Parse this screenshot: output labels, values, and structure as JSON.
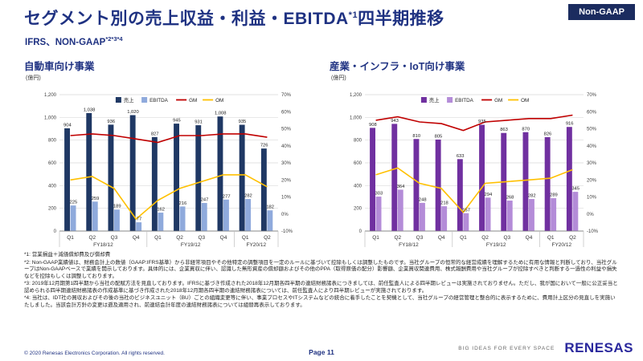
{
  "header": {
    "badge": "Non-GAAP",
    "title_main": "セグメント別の売上収益・利益・EBITDA",
    "title_sup": "*1",
    "title_tail": "四半期推移",
    "subtitle_main": "IFRS、NON-GAAP",
    "subtitle_sup": "*2*3*4"
  },
  "colors": {
    "brand_blue": "#1F3282",
    "badge_bg": "#1B2C5F",
    "logo_blue": "#2A289D",
    "gm_red": "#C00000",
    "om_yellow": "#FFC000",
    "auto_revenue": "#1F3864",
    "auto_ebitda": "#8FAADC",
    "iot_revenue": "#7030A0",
    "iot_ebitda": "#B48CD8"
  },
  "chart_data": [
    {
      "type": "bar",
      "title": "自動車向け事業",
      "unit_label": "(億円)",
      "categories": [
        "Q1",
        "Q2",
        "Q3",
        "Q4",
        "Q1",
        "Q2",
        "Q3",
        "Q4",
        "Q1",
        "Q2"
      ],
      "category_groups": [
        {
          "label": "FY18/12",
          "span": 4
        },
        {
          "label": "FY19/12",
          "span": 4
        },
        {
          "label": "FY20/12",
          "span": 2
        }
      ],
      "series": [
        {
          "name": "売上",
          "type": "bar",
          "axis": "left",
          "color": "#1F3864",
          "values": [
            904,
            1038,
            936,
            1020,
            827,
            945,
            931,
            1008,
            935,
            726
          ]
        },
        {
          "name": "EBITDA",
          "type": "bar",
          "axis": "left",
          "color": "#8FAADC",
          "values": [
            225,
            259,
            189,
            77,
            162,
            216,
            247,
            277,
            282,
            182
          ]
        },
        {
          "name": "GM",
          "type": "line",
          "axis": "right",
          "color": "#C00000",
          "values": [
            46,
            47,
            46,
            44,
            42,
            46,
            46,
            47,
            47,
            45
          ]
        },
        {
          "name": "OM",
          "type": "line",
          "axis": "right",
          "color": "#FFC000",
          "values": [
            20,
            22,
            15,
            -3,
            8,
            15,
            19,
            23,
            23,
            16
          ]
        }
      ],
      "left_axis": {
        "min": 0,
        "max": 1200,
        "step": 200,
        "labels": [
          "0",
          "200",
          "400",
          "600",
          "800",
          "1,000",
          "1,200"
        ]
      },
      "right_axis": {
        "min": -10,
        "max": 70,
        "step": 10,
        "labels": [
          "-10%",
          "0%",
          "10%",
          "20%",
          "30%",
          "40%",
          "50%",
          "60%",
          "70%"
        ]
      }
    },
    {
      "type": "bar",
      "title": "産業・インフラ・IoT向け事業",
      "unit_label": "(億円)",
      "categories": [
        "Q1",
        "Q2",
        "Q3",
        "Q4",
        "Q1",
        "Q2",
        "Q3",
        "Q4",
        "Q1",
        "Q2"
      ],
      "category_groups": [
        {
          "label": "FY18/12",
          "span": 4
        },
        {
          "label": "FY19/12",
          "span": 4
        },
        {
          "label": "FY20/12",
          "span": 2
        }
      ],
      "series": [
        {
          "name": "売上",
          "type": "bar",
          "axis": "left",
          "color": "#7030A0",
          "values": [
            908,
            943,
            810,
            805,
            633,
            935,
            863,
            870,
            826,
            916
          ]
        },
        {
          "name": "EBITDA",
          "type": "bar",
          "axis": "left",
          "color": "#B48CD8",
          "values": [
            303,
            364,
            248,
            218,
            157,
            294,
            268,
            282,
            289,
            345
          ]
        },
        {
          "name": "GM",
          "type": "line",
          "axis": "right",
          "color": "#C00000",
          "values": [
            55,
            57,
            54,
            53,
            49,
            54,
            55,
            56,
            56,
            58
          ]
        },
        {
          "name": "OM",
          "type": "line",
          "axis": "right",
          "color": "#FFC000",
          "values": [
            23,
            27,
            18,
            15,
            1,
            18,
            19,
            20,
            21,
            26
          ]
        }
      ],
      "left_axis": {
        "min": 0,
        "max": 1200,
        "step": 200,
        "labels": [
          "0",
          "200",
          "400",
          "600",
          "800",
          "1,000",
          "1,200"
        ]
      },
      "right_axis": {
        "min": -10,
        "max": 70,
        "step": 10,
        "labels": [
          "-10%",
          "0%",
          "10%",
          "20%",
          "30%",
          "40%",
          "50%",
          "60%",
          "70%"
        ]
      }
    }
  ],
  "footnotes": [
    "*1: 営業損益＋減価償却費及び償却費",
    "*2: Non-GAAP業績値は、財務会計上の数値（GAAP:IFRS基準）から非経常項目やその他特定の調整項目を一定のルールに基づいて控除もしくは調整したものです。当社グループの恒常的な経営成績を理解するために有用な情報と判断しており、当社グループはNon-GAAPベースで業績を開示しております。具体的には、企業買収に伴い、認識した無形資産の償却額およびその他のPPA（取得原価の配分）影響額、企業買収関連費用、株式報酬費用や当社グループが控除すべきと判断する一過性の利益や損失などを控除もしくは調整しております。",
    "*3: 2019年12月期第1四半期から当社の配賦方法を見直しております。IFRSに基づき作成された2018年12月期各四半期の連結財務諸表につきましては、前任監査人による四半期レビューは実施されておりません。ただし、我が国において一般に公正妥当と認められる四半期連結財務諸表の作成基準に基づき作成された2018年12月期各四半期の連結財務諸表については、前任監査人により四半期レビューが実施されております。",
    "*4: 当社は、IDT社の買収およびその後の当社のビジネスユニット（BU）ごとの組織変更等に伴い、事業プロセスやITシステムなどの統合に着手したことを契機として、当社グループの経営管理と整合的に表示するために、費用計上区分の見直しを実施いたしました。当該会計方針の変更は遡及適用され、前連結会計年度の連結財務諸表については組替再表示しております。"
  ],
  "footer": {
    "copyright": "© 2020 Renesas Electronics Corporation. All rights reserved.",
    "page": "Page 11",
    "tagline": "BIG IDEAS FOR EVERY SPACE",
    "logo": "RENESAS"
  }
}
